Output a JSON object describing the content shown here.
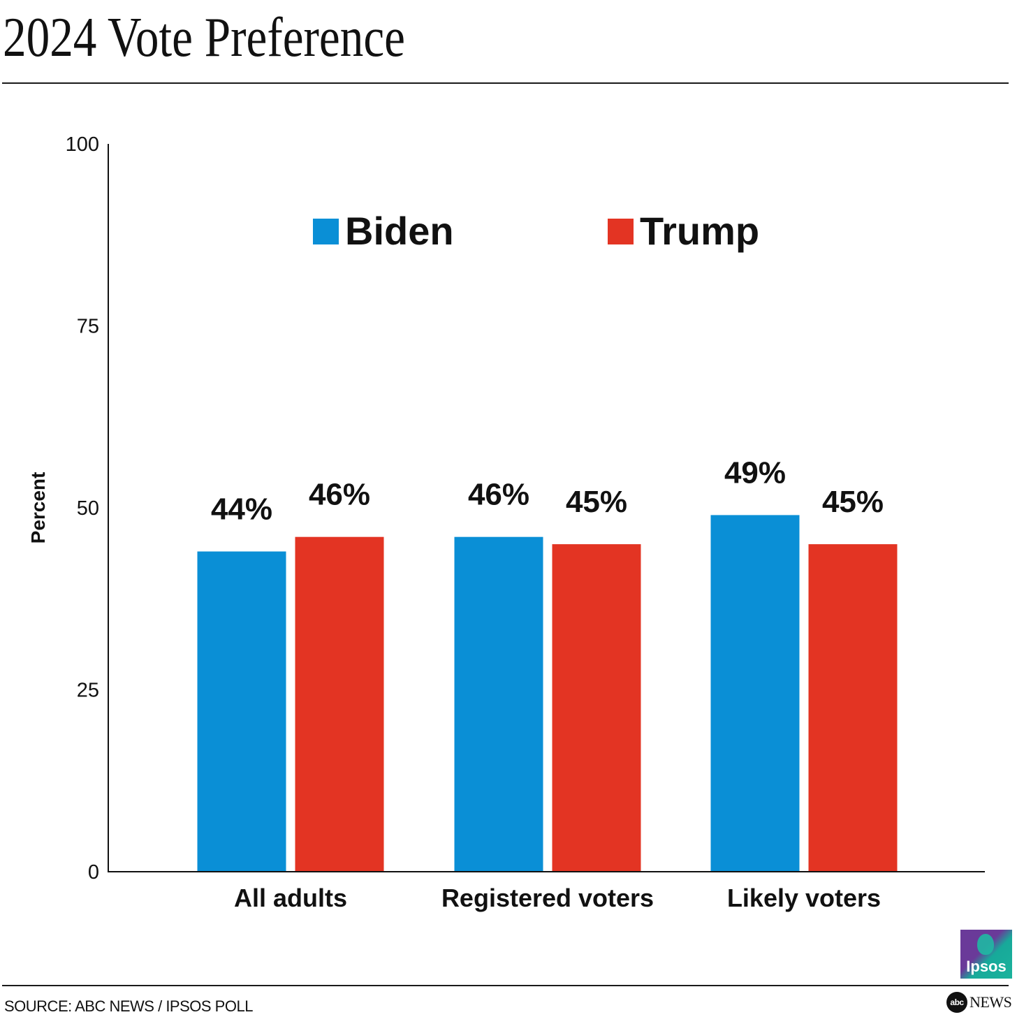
{
  "header": {
    "title": "2024 Vote Preference"
  },
  "footer": {
    "source": "SOURCE: ABC NEWS / IPSOS POLL",
    "ipsos_logo_text": "Ipsos",
    "abc_logo_disc_text": "abc",
    "abc_logo_news_text": "NEWS"
  },
  "colors": {
    "biden": "#0a8fd6",
    "trump": "#e33423",
    "axis": "#111111"
  },
  "chart_data": {
    "type": "bar",
    "title": "2024 Vote Preference",
    "xlabel": "",
    "ylabel": "Percent",
    "ylim": [
      0,
      100
    ],
    "yticks": [
      0,
      25,
      50,
      75,
      100
    ],
    "grid": false,
    "legend_position": "top-center",
    "categories": [
      "All adults",
      "Registered voters",
      "Likely voters"
    ],
    "series": [
      {
        "name": "Biden",
        "values": [
          44,
          46,
          49
        ],
        "labels": [
          "44%",
          "46%",
          "49%"
        ]
      },
      {
        "name": "Trump",
        "values": [
          46,
          45,
          45
        ],
        "labels": [
          "46%",
          "45%",
          "45%"
        ]
      }
    ]
  }
}
